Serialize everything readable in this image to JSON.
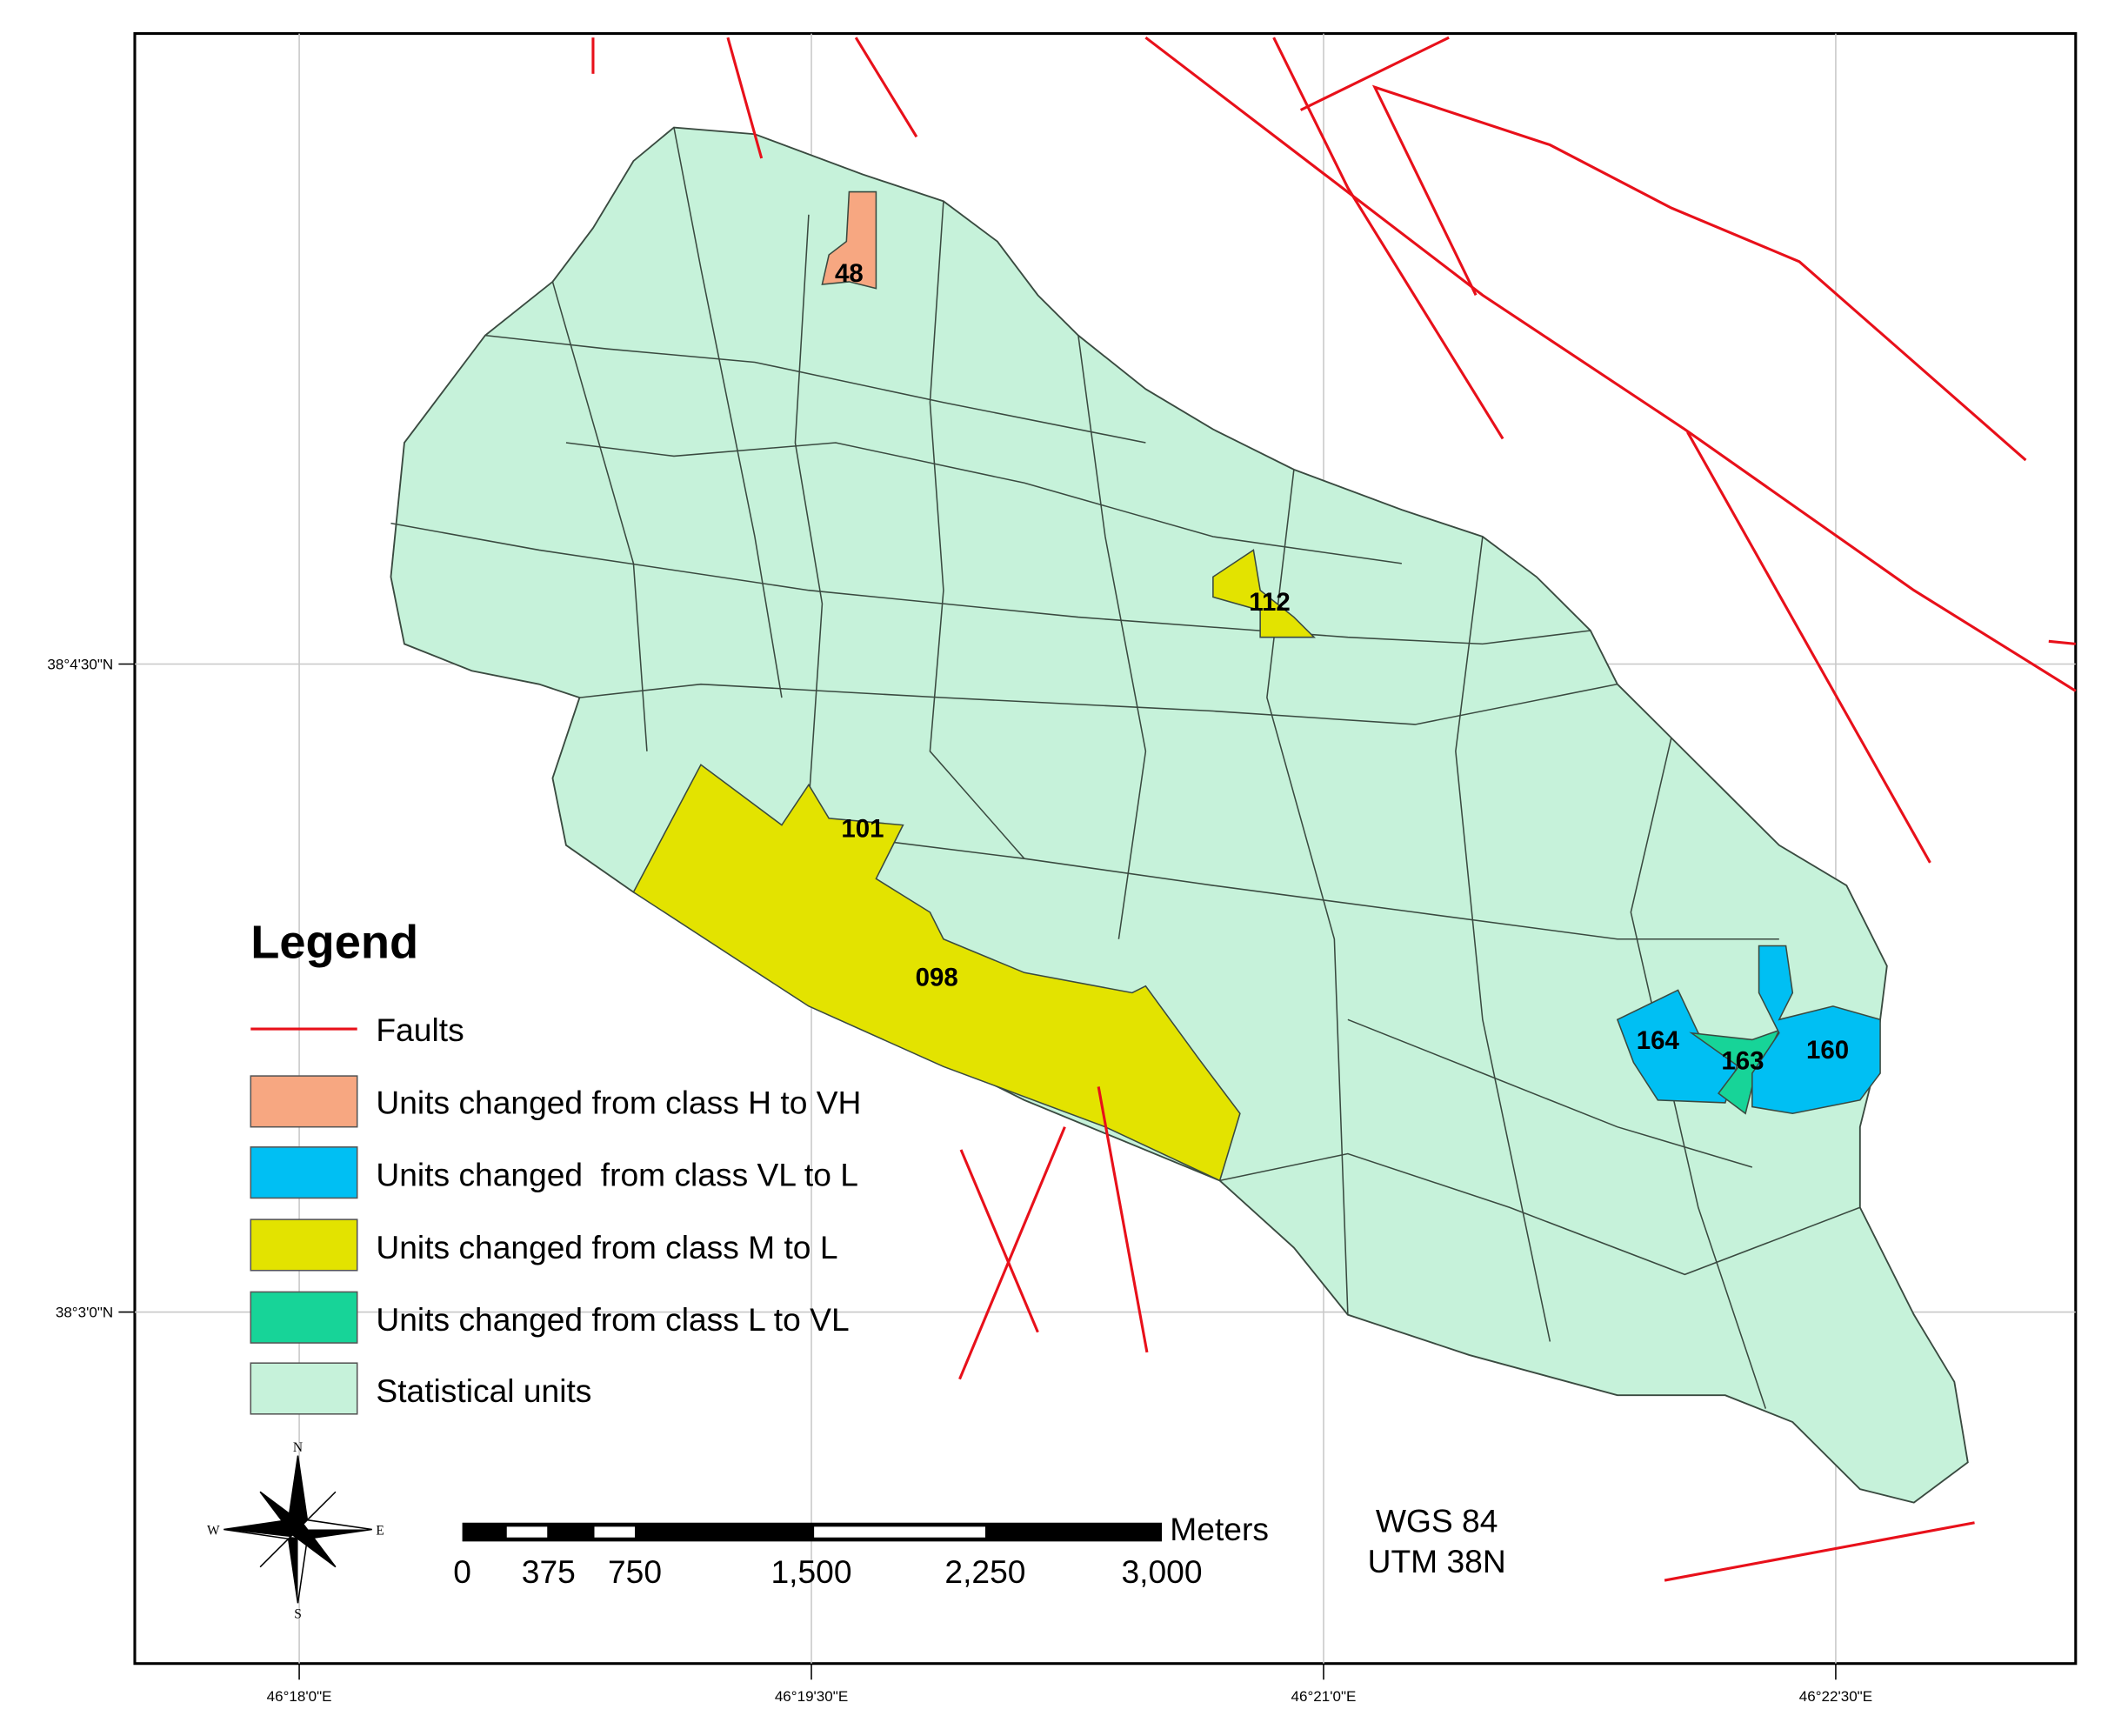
{
  "legend": {
    "title": "Legend",
    "items": [
      "Faults",
      "Units changed from class H to VH",
      "Units changed  from class VL to L",
      "Units changed from class M to L",
      "Units changed from class L to VL",
      "Statistical units"
    ]
  },
  "units": [
    "48",
    "112",
    "101",
    "098",
    "164",
    "163",
    "160"
  ],
  "latitude_labels": [
    "38°4'30\"N",
    "38°3'0\"N"
  ],
  "longitude_labels": [
    "46°18'0\"E",
    "46°19'30\"E",
    "46°21'0\"E",
    "46°22'30\"E"
  ],
  "scale_bar": {
    "unit": "Meters",
    "ticks": [
      "0",
      "375",
      "750",
      "1,500",
      "2,250",
      "3,000"
    ]
  },
  "projection": [
    "WGS 84",
    "UTM 38N"
  ],
  "compass": [
    "N",
    "E",
    "S",
    "W"
  ]
}
